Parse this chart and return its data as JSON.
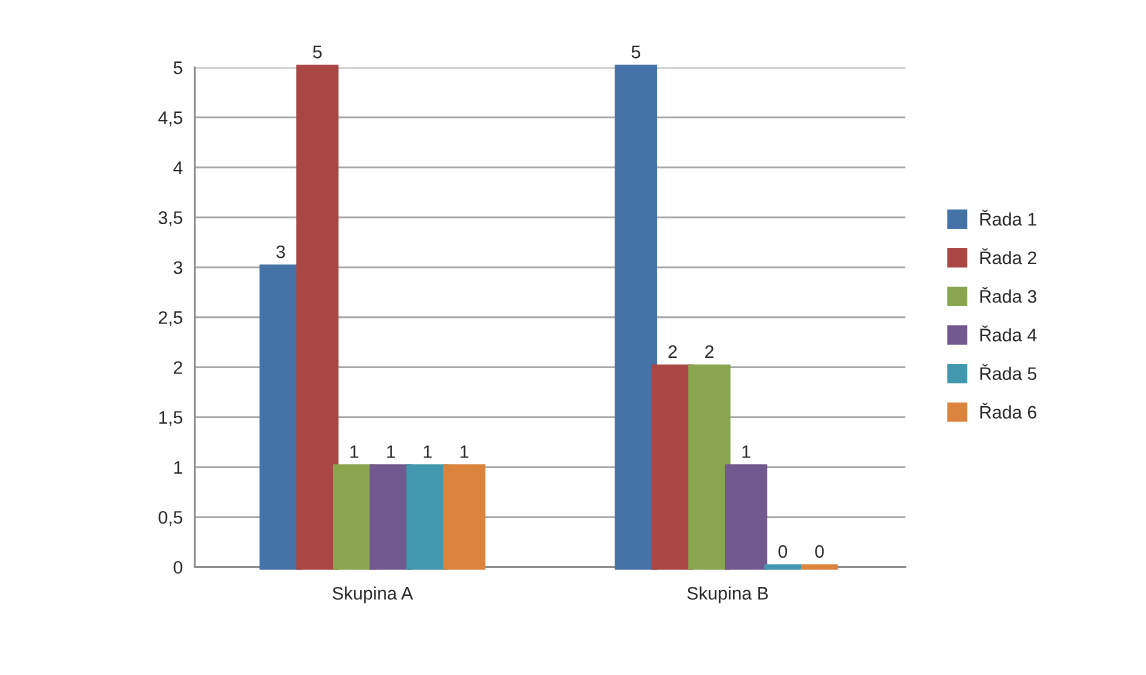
{
  "chart_data": {
    "type": "bar",
    "categories": [
      "Skupina A",
      "Skupina B"
    ],
    "series": [
      {
        "name": "Řada 1",
        "color": "#4572a7",
        "values": [
          3,
          5
        ]
      },
      {
        "name": "Řada 2",
        "color": "#aa4643",
        "values": [
          5,
          2
        ]
      },
      {
        "name": "Řada 3",
        "color": "#89a54e",
        "values": [
          1,
          2
        ]
      },
      {
        "name": "Řada 4",
        "color": "#71588f",
        "values": [
          1,
          1
        ]
      },
      {
        "name": "Řada 5",
        "color": "#4198af",
        "values": [
          1,
          0
        ]
      },
      {
        "name": "Řada 6",
        "color": "#db843d",
        "values": [
          1,
          0
        ]
      }
    ],
    "ylim": [
      0,
      5
    ],
    "yticks": [
      0,
      {
        "value": 0.5,
        "label": "0,5"
      },
      1,
      {
        "value": 1.5,
        "label": "1,5"
      },
      2,
      {
        "value": 2.5,
        "label": "2,5"
      },
      3,
      {
        "value": 3.5,
        "label": "3,5"
      },
      4,
      {
        "value": 4.5,
        "label": "4,5"
      },
      5
    ],
    "grid": "y",
    "legend": "right",
    "data_labels": true
  }
}
